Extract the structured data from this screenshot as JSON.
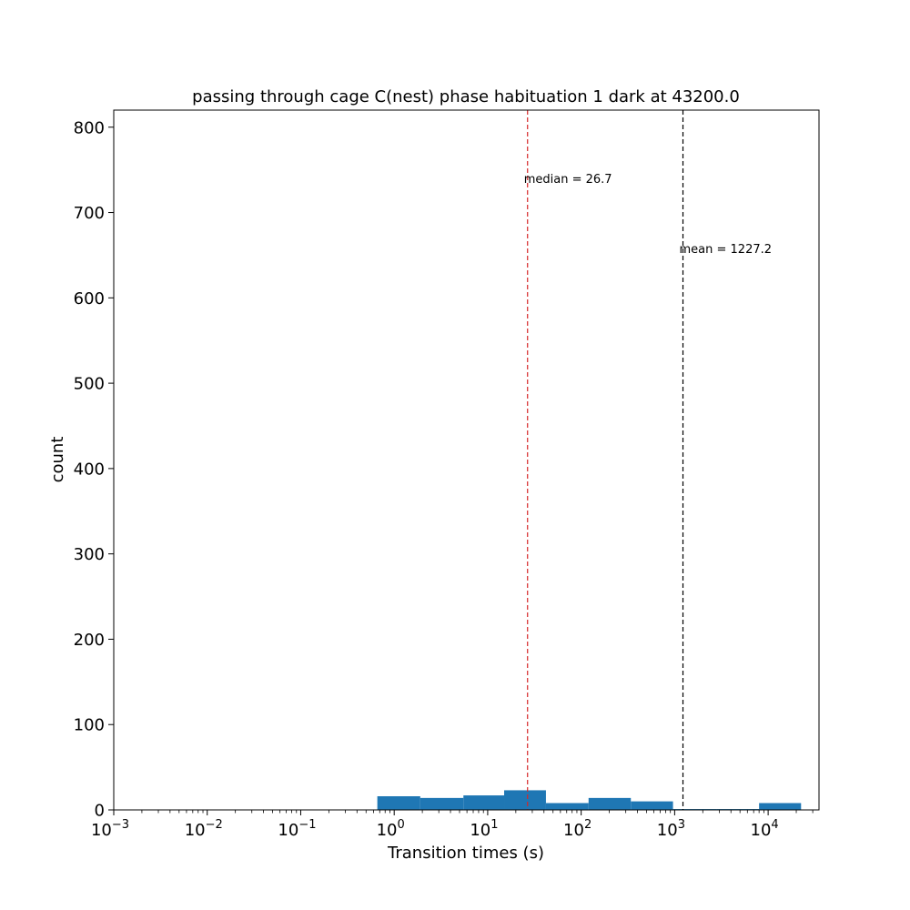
{
  "chart_data": {
    "type": "bar",
    "title": "passing through cage C(nest) phase habituation 1 dark at 43200.0",
    "xlabel": "Transition times (s)",
    "ylabel": "count",
    "xscale": "log",
    "xlim": [
      0.001,
      35000
    ],
    "ylim": [
      0,
      820
    ],
    "x_ticks": [
      {
        "value": 0.001,
        "base": "10",
        "exp": "−3"
      },
      {
        "value": 0.01,
        "base": "10",
        "exp": "−2"
      },
      {
        "value": 0.1,
        "base": "10",
        "exp": "−1"
      },
      {
        "value": 1,
        "base": "10",
        "exp": "0"
      },
      {
        "value": 10,
        "base": "10",
        "exp": "1"
      },
      {
        "value": 100,
        "base": "10",
        "exp": "2"
      },
      {
        "value": 1000,
        "base": "10",
        "exp": "3"
      },
      {
        "value": 10000,
        "base": "10",
        "exp": "4"
      }
    ],
    "y_ticks": [
      0,
      100,
      200,
      300,
      400,
      500,
      600,
      700,
      800
    ],
    "bins": [
      {
        "x0": 0.66,
        "x1": 1.9,
        "count": 16
      },
      {
        "x0": 1.9,
        "x1": 5.5,
        "count": 14
      },
      {
        "x0": 5.5,
        "x1": 15.0,
        "count": 17
      },
      {
        "x0": 15.0,
        "x1": 42.0,
        "count": 23
      },
      {
        "x0": 42.0,
        "x1": 120.0,
        "count": 8
      },
      {
        "x0": 120.0,
        "x1": 340.0,
        "count": 14
      },
      {
        "x0": 340.0,
        "x1": 960.0,
        "count": 10
      },
      {
        "x0": 960.0,
        "x1": 2800.0,
        "count": 1
      },
      {
        "x0": 2800.0,
        "x1": 8000.0,
        "count": 1
      },
      {
        "x0": 8000.0,
        "x1": 22500.0,
        "count": 8
      }
    ],
    "bar_color": "#1f77b4",
    "grid": false,
    "annotations": [
      {
        "name": "median",
        "value": 26.7,
        "label": "median = 26.7",
        "color": "#d62728",
        "label_y": 740
      },
      {
        "name": "mean",
        "value": 1227.2,
        "label": "mean = 1227.2",
        "color": "#000000",
        "label_y": 658
      }
    ]
  }
}
